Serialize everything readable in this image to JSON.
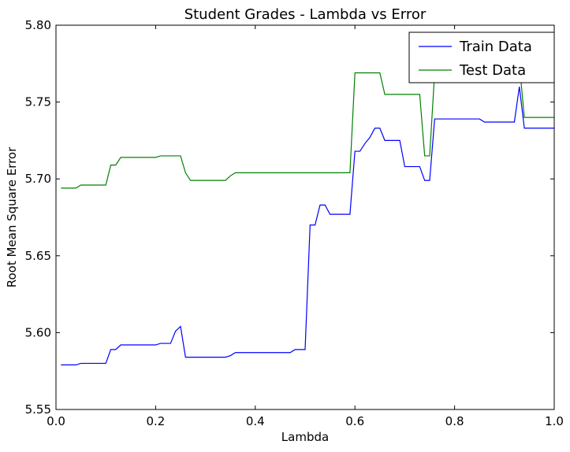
{
  "chart_data": {
    "type": "line",
    "title": "Student Grades - Lambda vs Error",
    "xlabel": "Lambda",
    "ylabel": "Root Mean Square Error",
    "xlim": [
      0.0,
      1.0
    ],
    "ylim": [
      5.55,
      5.8
    ],
    "x_ticks": [
      0.0,
      0.2,
      0.4,
      0.6,
      0.8,
      1.0
    ],
    "x_tick_labels": [
      "0.0",
      "0.2",
      "0.4",
      "0.6",
      "0.8",
      "1.0"
    ],
    "y_ticks": [
      5.55,
      5.6,
      5.65,
      5.7,
      5.75,
      5.8
    ],
    "y_tick_labels": [
      "5.55",
      "5.60",
      "5.65",
      "5.70",
      "5.75",
      "5.80"
    ],
    "grid": false,
    "legend_position": "top-right",
    "series": [
      {
        "name": "Train Data",
        "color": "#0000ff",
        "x": [
          0.01,
          0.02,
          0.03,
          0.04,
          0.05,
          0.06,
          0.07,
          0.08,
          0.09,
          0.1,
          0.11,
          0.12,
          0.13,
          0.14,
          0.15,
          0.16,
          0.17,
          0.18,
          0.19,
          0.2,
          0.21,
          0.22,
          0.23,
          0.24,
          0.25,
          0.26,
          0.27,
          0.28,
          0.29,
          0.3,
          0.31,
          0.32,
          0.33,
          0.34,
          0.35,
          0.36,
          0.37,
          0.38,
          0.39,
          0.4,
          0.41,
          0.42,
          0.43,
          0.44,
          0.45,
          0.46,
          0.47,
          0.48,
          0.49,
          0.5,
          0.51,
          0.52,
          0.53,
          0.54,
          0.55,
          0.56,
          0.57,
          0.58,
          0.59,
          0.6,
          0.61,
          0.62,
          0.63,
          0.64,
          0.65,
          0.66,
          0.67,
          0.68,
          0.69,
          0.7,
          0.71,
          0.72,
          0.73,
          0.74,
          0.75,
          0.76,
          0.77,
          0.78,
          0.79,
          0.8,
          0.81,
          0.82,
          0.83,
          0.84,
          0.85,
          0.86,
          0.87,
          0.88,
          0.89,
          0.9,
          0.91,
          0.92,
          0.93,
          0.94,
          0.95,
          0.96,
          0.97,
          0.98,
          0.99,
          1.0
        ],
        "values": [
          5.579,
          5.579,
          5.579,
          5.579,
          5.58,
          5.58,
          5.58,
          5.58,
          5.58,
          5.58,
          5.589,
          5.589,
          5.592,
          5.592,
          5.592,
          5.592,
          5.592,
          5.592,
          5.592,
          5.592,
          5.593,
          5.593,
          5.593,
          5.601,
          5.604,
          5.584,
          5.584,
          5.584,
          5.584,
          5.584,
          5.584,
          5.584,
          5.584,
          5.584,
          5.585,
          5.587,
          5.587,
          5.587,
          5.587,
          5.587,
          5.587,
          5.587,
          5.587,
          5.587,
          5.587,
          5.587,
          5.587,
          5.589,
          5.589,
          5.589,
          5.67,
          5.67,
          5.683,
          5.683,
          5.677,
          5.677,
          5.677,
          5.677,
          5.677,
          5.718,
          5.718,
          5.723,
          5.727,
          5.733,
          5.733,
          5.725,
          5.725,
          5.725,
          5.725,
          5.708,
          5.708,
          5.708,
          5.708,
          5.699,
          5.699,
          5.739,
          5.739,
          5.739,
          5.739,
          5.739,
          5.739,
          5.739,
          5.739,
          5.739,
          5.739,
          5.737,
          5.737,
          5.737,
          5.737,
          5.737,
          5.737,
          5.737,
          5.76,
          5.733,
          5.733,
          5.733,
          5.733,
          5.733,
          5.733,
          5.733
        ]
      },
      {
        "name": "Test Data",
        "color": "#008000",
        "x": [
          0.01,
          0.02,
          0.03,
          0.04,
          0.05,
          0.06,
          0.07,
          0.08,
          0.09,
          0.1,
          0.11,
          0.12,
          0.13,
          0.14,
          0.15,
          0.16,
          0.17,
          0.18,
          0.19,
          0.2,
          0.21,
          0.22,
          0.23,
          0.24,
          0.25,
          0.26,
          0.27,
          0.28,
          0.29,
          0.3,
          0.31,
          0.32,
          0.33,
          0.34,
          0.35,
          0.36,
          0.37,
          0.38,
          0.39,
          0.4,
          0.41,
          0.42,
          0.43,
          0.44,
          0.45,
          0.46,
          0.47,
          0.48,
          0.49,
          0.5,
          0.51,
          0.52,
          0.53,
          0.54,
          0.55,
          0.56,
          0.57,
          0.58,
          0.59,
          0.6,
          0.61,
          0.62,
          0.63,
          0.64,
          0.65,
          0.66,
          0.67,
          0.68,
          0.69,
          0.7,
          0.71,
          0.72,
          0.73,
          0.74,
          0.75,
          0.76,
          0.77,
          0.78,
          0.79,
          0.8,
          0.81,
          0.82,
          0.83,
          0.84,
          0.85,
          0.86,
          0.87,
          0.88,
          0.89,
          0.9,
          0.91,
          0.92,
          0.93,
          0.94,
          0.95,
          0.96,
          0.97,
          0.98,
          0.99,
          1.0
        ],
        "values": [
          5.694,
          5.694,
          5.694,
          5.694,
          5.696,
          5.696,
          5.696,
          5.696,
          5.696,
          5.696,
          5.709,
          5.709,
          5.714,
          5.714,
          5.714,
          5.714,
          5.714,
          5.714,
          5.714,
          5.714,
          5.715,
          5.715,
          5.715,
          5.715,
          5.715,
          5.704,
          5.699,
          5.699,
          5.699,
          5.699,
          5.699,
          5.699,
          5.699,
          5.699,
          5.702,
          5.704,
          5.704,
          5.704,
          5.704,
          5.704,
          5.704,
          5.704,
          5.704,
          5.704,
          5.704,
          5.704,
          5.704,
          5.704,
          5.704,
          5.704,
          5.704,
          5.704,
          5.704,
          5.704,
          5.704,
          5.704,
          5.704,
          5.704,
          5.704,
          5.769,
          5.769,
          5.769,
          5.769,
          5.769,
          5.769,
          5.755,
          5.755,
          5.755,
          5.755,
          5.755,
          5.755,
          5.755,
          5.755,
          5.715,
          5.715,
          5.769,
          5.769,
          5.775,
          5.775,
          5.775,
          5.775,
          5.775,
          5.775,
          5.775,
          5.775,
          5.775,
          5.775,
          5.775,
          5.775,
          5.775,
          5.775,
          5.775,
          5.775,
          5.74,
          5.74,
          5.74,
          5.74,
          5.74,
          5.74,
          5.74
        ]
      }
    ]
  }
}
